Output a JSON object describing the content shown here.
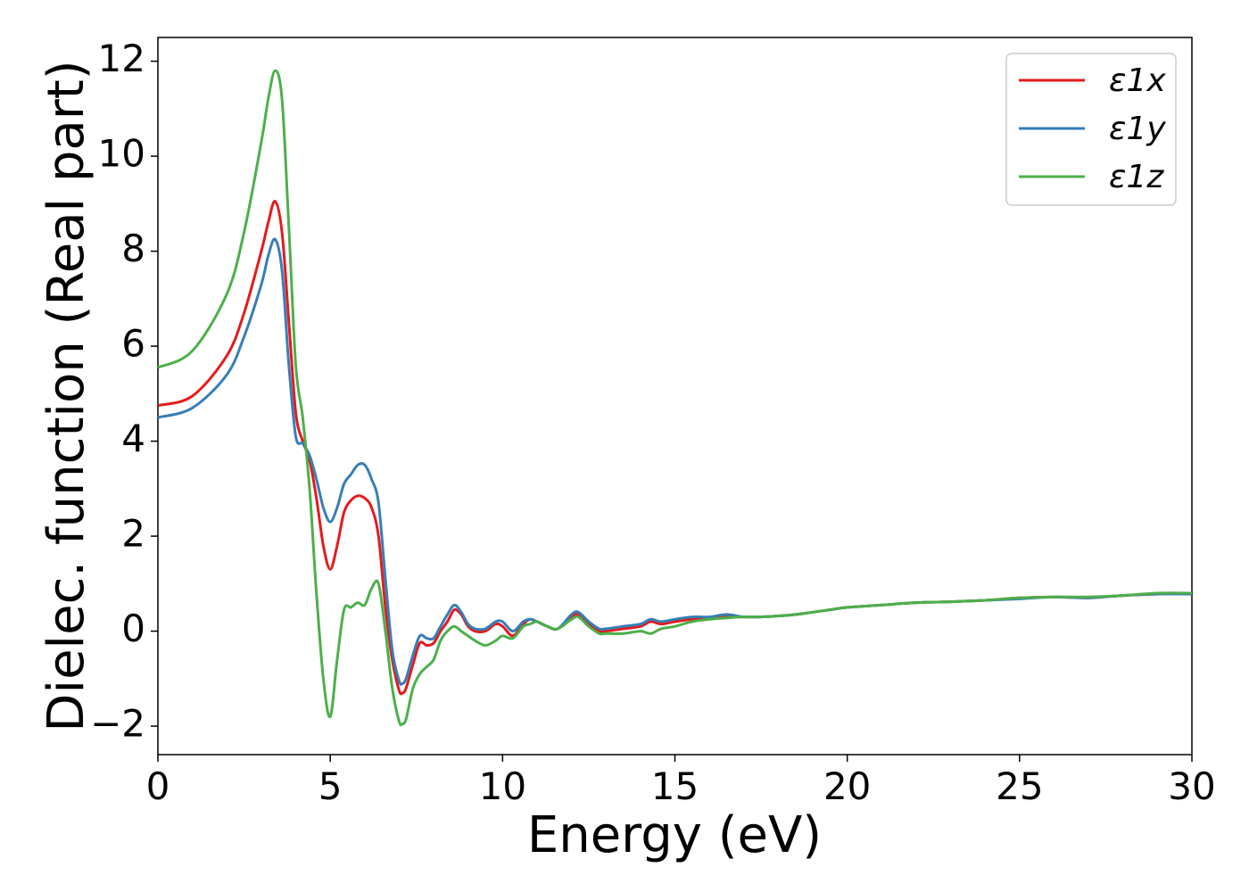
{
  "chart_data": {
    "type": "line",
    "xlabel": "Energy (eV)",
    "ylabel": "Dielec. function (Real part)",
    "xlim": [
      0,
      30
    ],
    "ylim": [
      -2.6,
      12.5
    ],
    "xticks": [
      0,
      5,
      10,
      15,
      20,
      25,
      30
    ],
    "xtick_labels": [
      "0",
      "5",
      "10",
      "15",
      "20",
      "25",
      "30"
    ],
    "yticks": [
      -2,
      0,
      2,
      4,
      6,
      8,
      10,
      12
    ],
    "ytick_labels": [
      "−2",
      "0",
      "2",
      "4",
      "6",
      "8",
      "10",
      "12"
    ],
    "grid": false,
    "legend_position": "top-right",
    "series": [
      {
        "name": "ε1x",
        "color": "#e41a1c",
        "x": [
          0,
          1,
          2,
          2.5,
          3,
          3.2,
          3.4,
          3.6,
          3.8,
          4.0,
          4.2,
          4.4,
          4.6,
          4.8,
          5.0,
          5.2,
          5.4,
          5.6,
          5.8,
          6.0,
          6.2,
          6.4,
          6.6,
          6.8,
          7.0,
          7.1,
          7.2,
          7.4,
          7.6,
          7.8,
          8.0,
          8.2,
          8.4,
          8.6,
          8.8,
          9.0,
          9.2,
          9.5,
          9.8,
          10.0,
          10.3,
          10.6,
          10.8,
          11.0,
          11.3,
          11.6,
          12.0,
          12.2,
          12.5,
          12.8,
          13.0,
          13.5,
          14.0,
          14.3,
          14.6,
          15.0,
          15.5,
          16.0,
          16.5,
          17.0,
          17.5,
          18.0,
          18.5,
          19.0,
          19.5,
          20.0,
          21.0,
          22.0,
          23.0,
          24.0,
          25.0,
          26.0,
          27.0,
          28.0,
          29.0,
          30.0
        ],
        "values": [
          4.75,
          4.95,
          5.8,
          6.7,
          8.0,
          8.6,
          9.05,
          8.4,
          6.5,
          4.6,
          4.0,
          3.6,
          2.8,
          1.8,
          1.3,
          1.8,
          2.5,
          2.75,
          2.85,
          2.8,
          2.6,
          2.0,
          0.5,
          -0.6,
          -1.25,
          -1.3,
          -1.2,
          -0.7,
          -0.25,
          -0.3,
          -0.25,
          0.0,
          0.2,
          0.45,
          0.35,
          0.1,
          0.0,
          0.0,
          0.15,
          0.1,
          -0.1,
          0.15,
          0.25,
          0.2,
          0.1,
          0.05,
          0.3,
          0.35,
          0.15,
          0.0,
          0.0,
          0.05,
          0.1,
          0.2,
          0.15,
          0.2,
          0.25,
          0.28,
          0.3,
          0.3,
          0.3,
          0.32,
          0.35,
          0.4,
          0.45,
          0.5,
          0.55,
          0.6,
          0.62,
          0.65,
          0.7,
          0.72,
          0.7,
          0.75,
          0.78,
          0.8
        ]
      },
      {
        "name": "ε1y",
        "color": "#377eb8",
        "x": [
          0,
          1,
          2,
          2.5,
          3,
          3.2,
          3.4,
          3.6,
          3.8,
          4.0,
          4.2,
          4.4,
          4.6,
          4.8,
          5.0,
          5.2,
          5.4,
          5.6,
          5.8,
          6.0,
          6.2,
          6.4,
          6.6,
          6.8,
          7.0,
          7.1,
          7.2,
          7.4,
          7.6,
          7.8,
          8.0,
          8.2,
          8.4,
          8.6,
          8.8,
          9.0,
          9.2,
          9.5,
          9.8,
          10.0,
          10.3,
          10.6,
          10.8,
          11.0,
          11.3,
          11.6,
          12.0,
          12.2,
          12.5,
          12.8,
          13.0,
          13.5,
          14.0,
          14.3,
          14.6,
          15.0,
          15.5,
          16.0,
          16.5,
          17.0,
          17.5,
          18.0,
          18.5,
          19.0,
          19.5,
          20.0,
          21.0,
          22.0,
          23.0,
          24.0,
          25.0,
          26.0,
          27.0,
          28.0,
          29.0,
          30.0
        ],
        "values": [
          4.5,
          4.7,
          5.4,
          6.2,
          7.3,
          7.9,
          8.25,
          7.6,
          5.6,
          4.1,
          3.95,
          3.7,
          3.2,
          2.6,
          2.3,
          2.6,
          3.1,
          3.3,
          3.5,
          3.5,
          3.2,
          2.7,
          1.1,
          -0.4,
          -1.05,
          -1.1,
          -1.0,
          -0.5,
          -0.1,
          -0.15,
          -0.15,
          0.1,
          0.35,
          0.55,
          0.4,
          0.15,
          0.05,
          0.05,
          0.2,
          0.2,
          0.0,
          0.2,
          0.25,
          0.2,
          0.1,
          0.05,
          0.35,
          0.4,
          0.2,
          0.05,
          0.05,
          0.1,
          0.15,
          0.25,
          0.2,
          0.25,
          0.3,
          0.3,
          0.35,
          0.3,
          0.3,
          0.32,
          0.35,
          0.4,
          0.45,
          0.5,
          0.55,
          0.6,
          0.62,
          0.65,
          0.68,
          0.72,
          0.7,
          0.75,
          0.78,
          0.78
        ]
      },
      {
        "name": "ε1z",
        "color": "#4daf4a",
        "x": [
          0,
          1,
          2,
          2.5,
          3,
          3.2,
          3.4,
          3.6,
          3.8,
          4.0,
          4.2,
          4.4,
          4.6,
          4.8,
          5.0,
          5.2,
          5.4,
          5.6,
          5.8,
          6.0,
          6.2,
          6.4,
          6.6,
          6.8,
          7.0,
          7.1,
          7.2,
          7.4,
          7.6,
          7.8,
          8.0,
          8.2,
          8.4,
          8.6,
          8.8,
          9.0,
          9.2,
          9.5,
          9.8,
          10.0,
          10.3,
          10.6,
          10.8,
          11.0,
          11.3,
          11.6,
          12.0,
          12.2,
          12.5,
          12.8,
          13.0,
          13.5,
          14.0,
          14.3,
          14.6,
          15.0,
          15.5,
          16.0,
          16.5,
          17.0,
          17.5,
          18.0,
          18.5,
          19.0,
          19.5,
          20.0,
          21.0,
          22.0,
          23.0,
          24.0,
          25.0,
          26.0,
          27.0,
          28.0,
          29.0,
          30.0
        ],
        "values": [
          5.55,
          5.9,
          7.1,
          8.4,
          10.3,
          11.2,
          11.8,
          11.2,
          8.5,
          5.6,
          4.5,
          3.0,
          0.8,
          -1.0,
          -1.8,
          -0.6,
          0.45,
          0.5,
          0.6,
          0.55,
          0.9,
          1.0,
          0.0,
          -1.2,
          -1.9,
          -1.95,
          -1.85,
          -1.2,
          -0.9,
          -0.75,
          -0.6,
          -0.2,
          0.0,
          0.1,
          0.0,
          -0.1,
          -0.2,
          -0.3,
          -0.2,
          -0.1,
          -0.15,
          0.1,
          0.15,
          0.2,
          0.1,
          0.05,
          0.25,
          0.3,
          0.1,
          -0.05,
          -0.05,
          -0.05,
          0.0,
          -0.05,
          0.05,
          0.1,
          0.2,
          0.25,
          0.28,
          0.3,
          0.3,
          0.32,
          0.35,
          0.4,
          0.45,
          0.5,
          0.55,
          0.6,
          0.62,
          0.65,
          0.7,
          0.72,
          0.72,
          0.75,
          0.8,
          0.8
        ]
      }
    ]
  }
}
